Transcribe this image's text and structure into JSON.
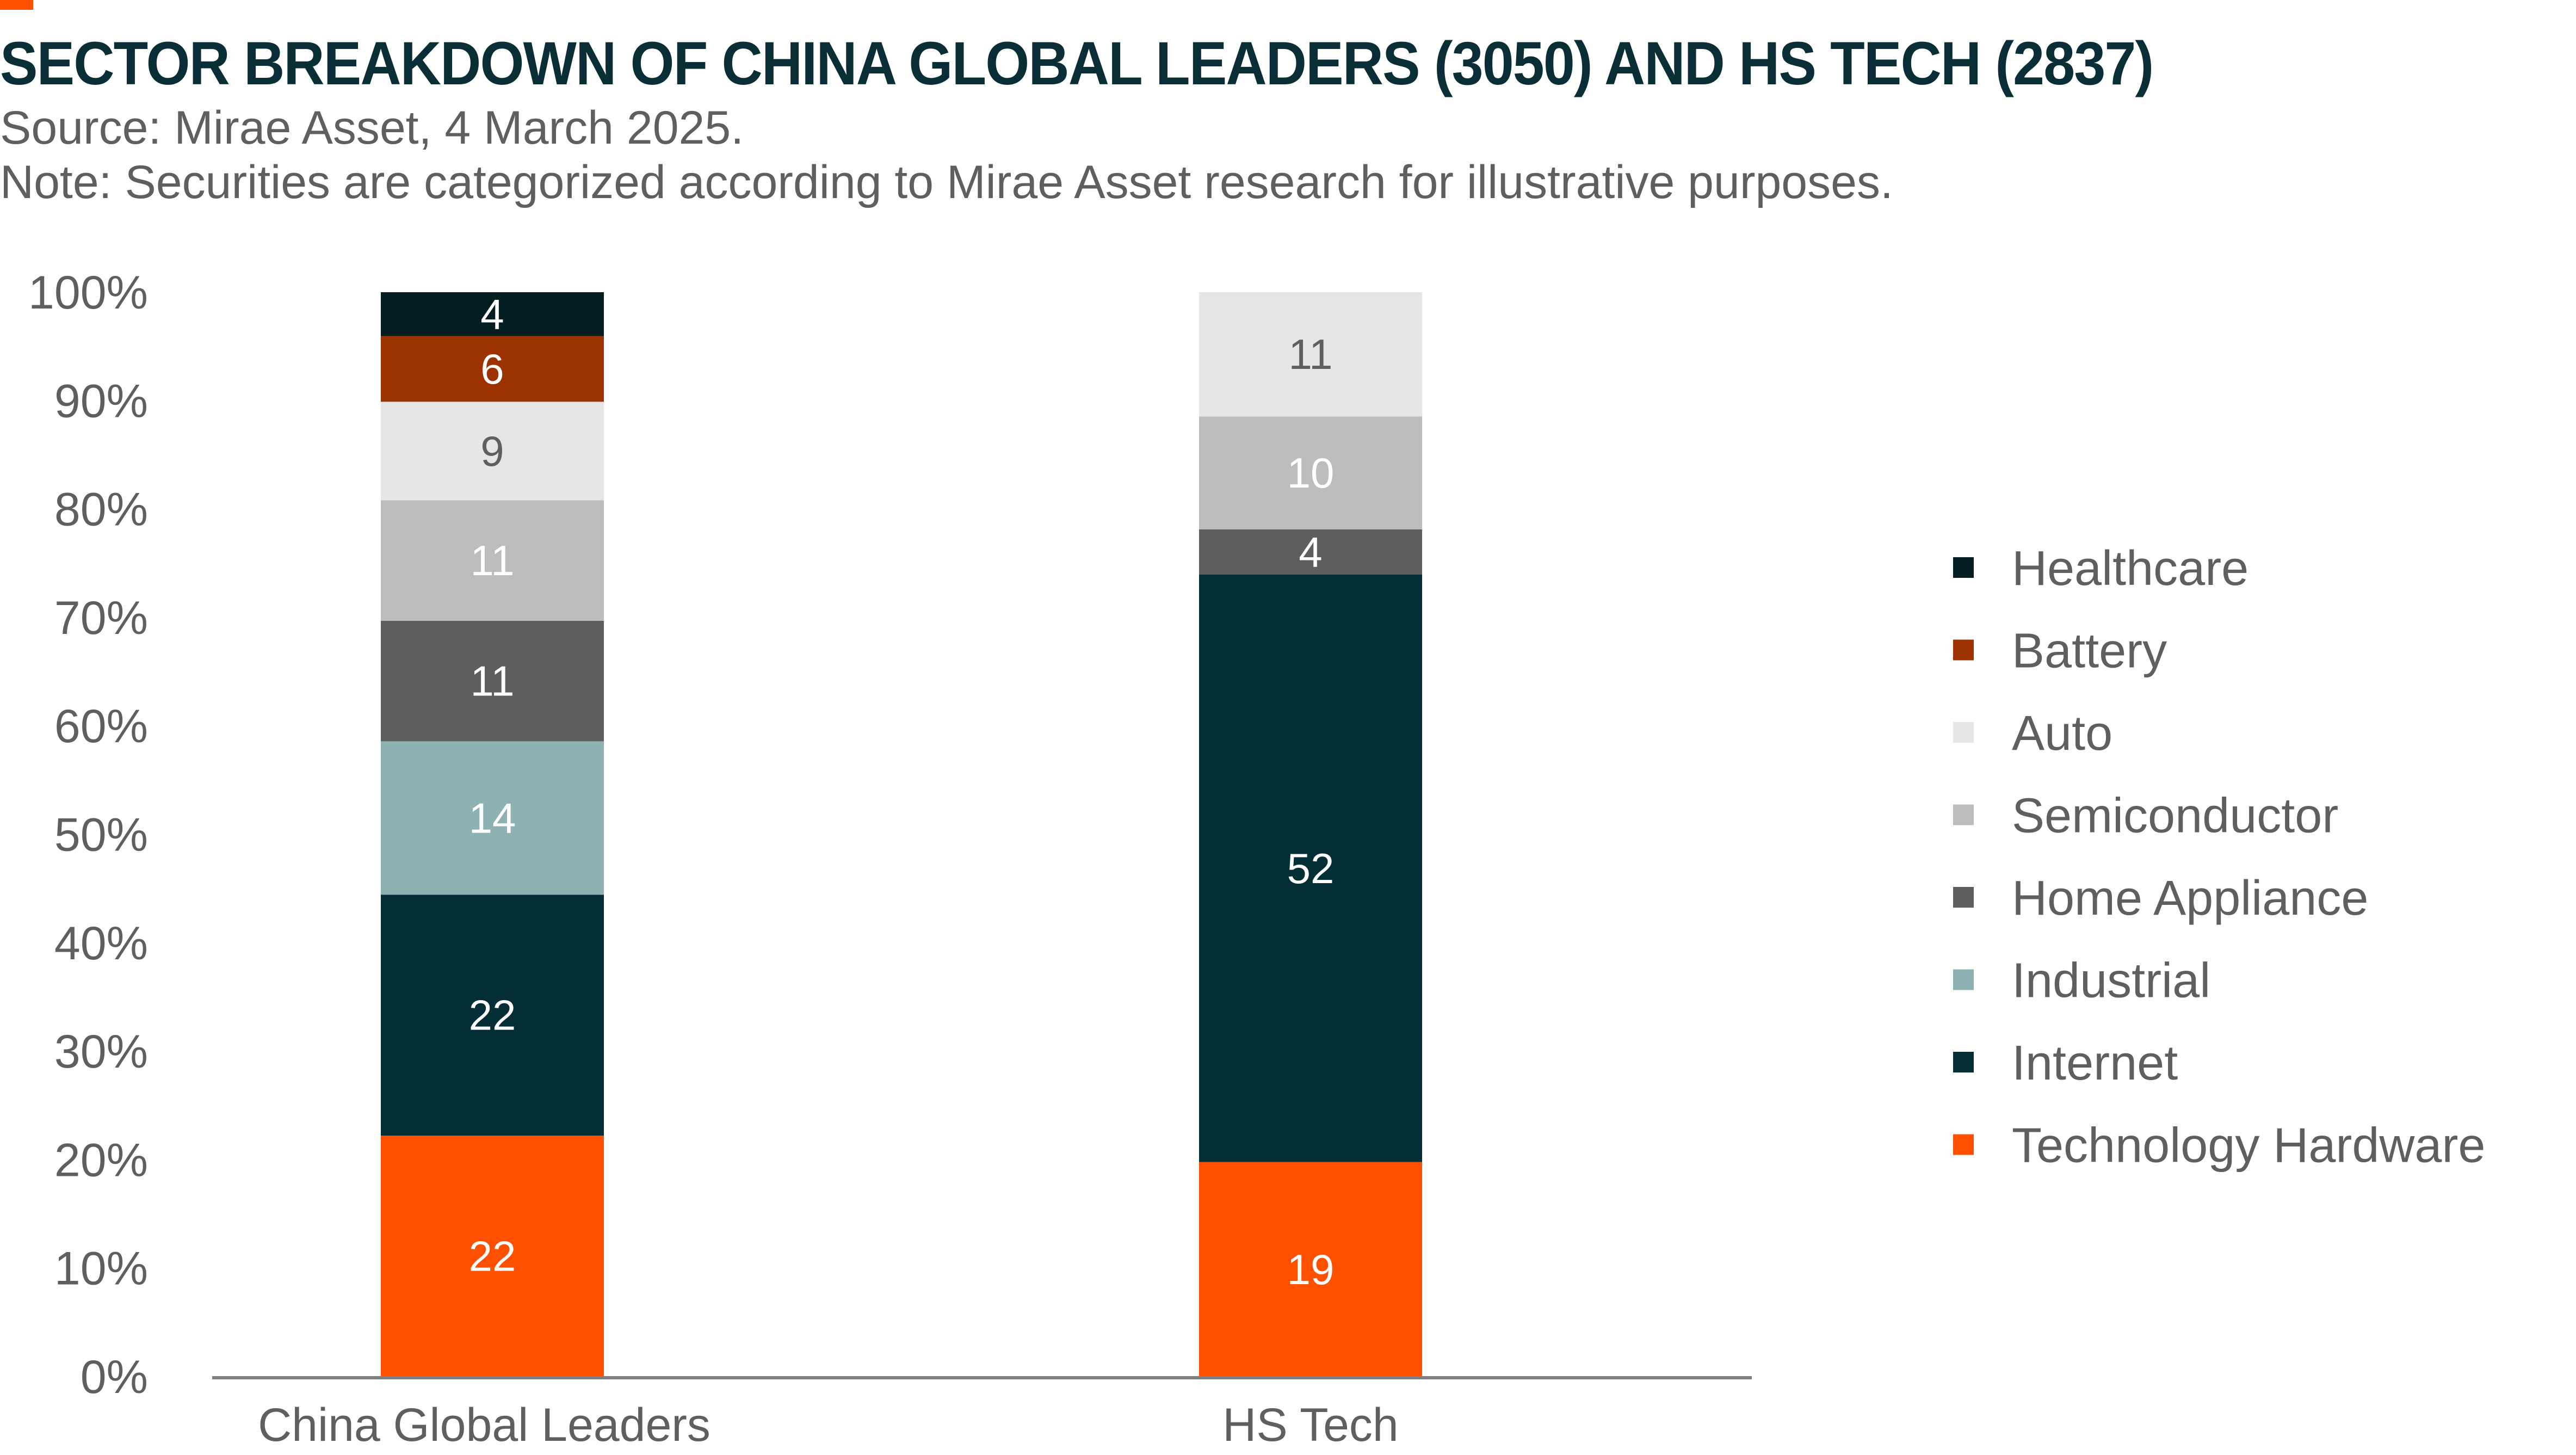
{
  "header": {
    "title": "SECTOR BREAKDOWN OF CHINA GLOBAL LEADERS (3050) AND HS TECH (2837)",
    "source": "Source: Mirae Asset, 4 March 2025.",
    "note": "Note: Securities are categorized according to Mirae Asset research for illustrative purposes.",
    "accent_color": "#FF5000"
  },
  "chart_data": {
    "type": "bar",
    "stacked": true,
    "categories": [
      "China Global Leaders",
      "HS Tech"
    ],
    "series": [
      {
        "name": "Technology Hardware",
        "values": [
          22,
          19
        ],
        "color": "#FF5000",
        "label_color": "#FFFFFF"
      },
      {
        "name": "Internet",
        "values": [
          22,
          52
        ],
        "color": "#032E36",
        "label_color": "#FFFFFF"
      },
      {
        "name": "Industrial",
        "values": [
          14,
          null
        ],
        "color": "#8EB1B1",
        "label_color": "#FFFFFF"
      },
      {
        "name": "Home Appliance",
        "values": [
          11,
          4
        ],
        "color": "#5E5E5E",
        "label_color": "#FFFFFF"
      },
      {
        "name": "Semiconductor",
        "values": [
          11,
          10
        ],
        "color": "#BDBDBD",
        "label_color": "#FFFFFF"
      },
      {
        "name": "Auto",
        "values": [
          9,
          11
        ],
        "color": "#E6E6E6",
        "label_color": "#5F5F5F"
      },
      {
        "name": "Battery",
        "values": [
          6,
          null
        ],
        "color": "#9C3200",
        "label_color": "#FFFFFF"
      },
      {
        "name": "Healthcare",
        "values": [
          4,
          null
        ],
        "color": "#031D20",
        "label_color": "#FFFFFF"
      }
    ],
    "segment_labels": [
      [
        "22",
        "22",
        "14",
        "11",
        "11",
        "9",
        "6",
        "4"
      ],
      [
        "19",
        "52",
        "",
        "4",
        "10",
        "11",
        "",
        ""
      ]
    ],
    "yaxis": {
      "ticks": [
        "0%",
        "10%",
        "20%",
        "30%",
        "40%",
        "50%",
        "60%",
        "70%",
        "80%",
        "90%",
        "100%"
      ],
      "ylim": [
        0,
        100
      ]
    },
    "legend": {
      "placement": "right",
      "order": [
        "Healthcare",
        "Battery",
        "Auto",
        "Semiconductor",
        "Home Appliance",
        "Industrial",
        "Internet",
        "Technology Hardware"
      ]
    },
    "grid": false
  }
}
